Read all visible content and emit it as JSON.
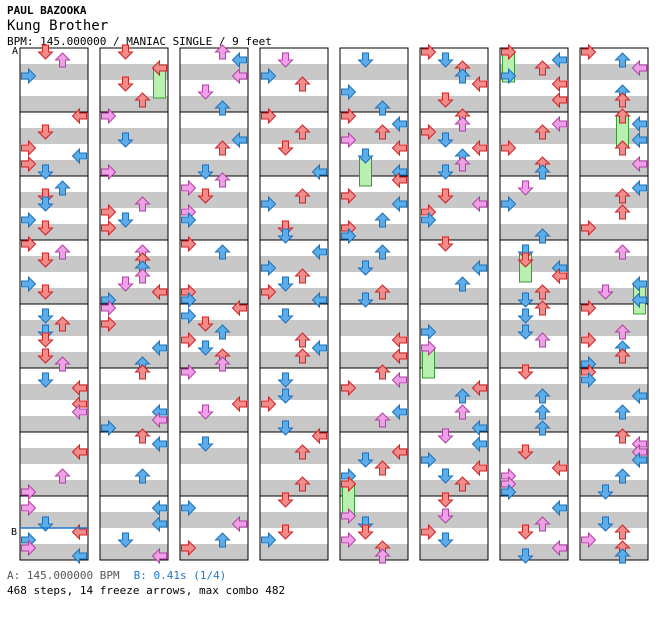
{
  "song": {
    "artist": "PAUL BAZOOKA",
    "title": "Kung Brother",
    "info": "BPM: 145.000000 / MANIAC SINGLE / 9 feet"
  },
  "markers": {
    "a": "A",
    "b": "B"
  },
  "footer": {
    "bpm_a": "A: 145.000000 BPM",
    "stop_b": "B: 0.41s (1/4)",
    "stats": "468 steps, 14 freeze arrows, max combo 482"
  },
  "colors": {
    "quarter": "#f28b8b",
    "quarter_stroke": "#cc2222",
    "eighth": "#5aaeea",
    "eighth_stroke": "#1f6fb8",
    "sixteenth": "#f0a0e8",
    "sixteenth_stroke": "#b040a0",
    "freeze": "#b8f0b0",
    "freeze_stroke": "#3a9a3a",
    "band": "#c8c8c8",
    "blue_line": "#1f78d1"
  },
  "chart_data": {
    "type": "step_chart",
    "columns": 8,
    "measures_per_column": 8,
    "lanes": [
      "left",
      "down",
      "up",
      "right"
    ],
    "steps": 468,
    "freeze_arrows": 14,
    "max_combo": 482,
    "bpm": 145.0,
    "stop_seconds": 0.41
  }
}
